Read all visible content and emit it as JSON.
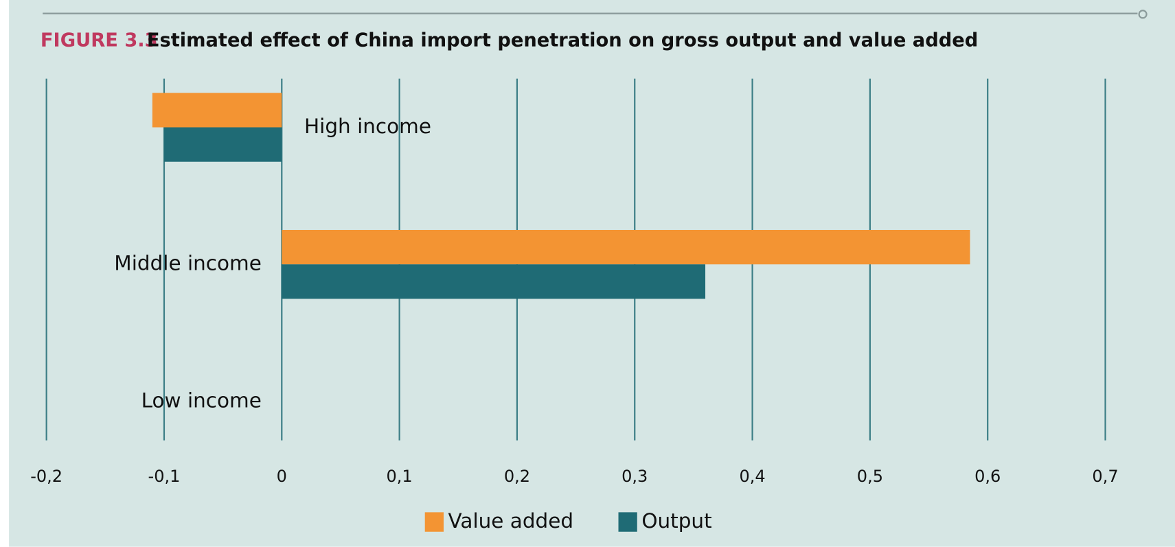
{
  "chart_data": {
    "type": "barh",
    "figure_label": "FIGURE 3.3",
    "title": "Estimated effect of China import penetration on gross output and value added",
    "categories": [
      "High income",
      "Middle income",
      "Low income"
    ],
    "series": [
      {
        "name": "Value added",
        "color": "#f39433",
        "values": [
          -0.11,
          0.585,
          0
        ]
      },
      {
        "name": "Output",
        "color": "#1f6b75",
        "values": [
          -0.1,
          0.36,
          0
        ]
      }
    ],
    "xlim": [
      -0.2,
      0.7
    ],
    "xticks": [
      {
        "value": -0.2,
        "label": "-0,2"
      },
      {
        "value": -0.1,
        "label": "-0,1"
      },
      0,
      {
        "value": 0.1,
        "label": "0,1"
      },
      {
        "value": 0.2,
        "label": "0,2"
      },
      {
        "value": 0.3,
        "label": "0,3"
      },
      {
        "value": 0.4,
        "label": "0,4"
      },
      {
        "value": 0.5,
        "label": "0,5"
      },
      {
        "value": 0.6,
        "label": "0,6"
      },
      {
        "value": 0.7,
        "label": "0,7"
      }
    ],
    "grid": true,
    "legend": "bottom"
  }
}
